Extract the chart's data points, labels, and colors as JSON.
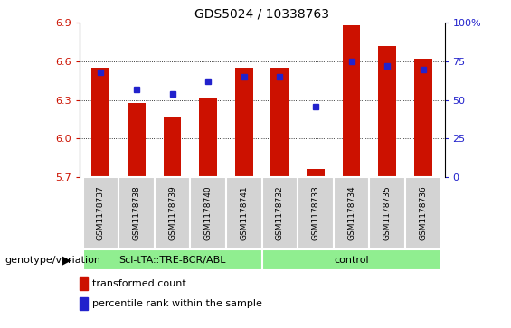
{
  "title": "GDS5024 / 10338763",
  "samples": [
    "GSM1178737",
    "GSM1178738",
    "GSM1178739",
    "GSM1178740",
    "GSM1178741",
    "GSM1178732",
    "GSM1178733",
    "GSM1178734",
    "GSM1178735",
    "GSM1178736"
  ],
  "red_values": [
    6.55,
    6.28,
    6.17,
    6.32,
    6.55,
    6.55,
    5.76,
    6.88,
    6.72,
    6.62
  ],
  "blue_values": [
    68,
    57,
    54,
    62,
    65,
    65,
    46,
    75,
    72,
    70
  ],
  "group_labels": [
    "Scl-tTA::TRE-BCR/ABL",
    "control"
  ],
  "group_colors": [
    "#90ee90",
    "#90ee90"
  ],
  "group_ranges": [
    [
      0,
      5
    ],
    [
      5,
      10
    ]
  ],
  "ylim": [
    5.7,
    6.9
  ],
  "yticks": [
    5.7,
    6.0,
    6.3,
    6.6,
    6.9
  ],
  "y2lim": [
    0,
    100
  ],
  "y2ticks": [
    0,
    25,
    50,
    75,
    100
  ],
  "bar_color": "#cc1100",
  "dot_color": "#2222cc",
  "bar_width": 0.5,
  "tick_label_area_color": "#d3d3d3",
  "genotype_label": "genotype/variation",
  "legend_items": [
    "transformed count",
    "percentile rank within the sample"
  ]
}
